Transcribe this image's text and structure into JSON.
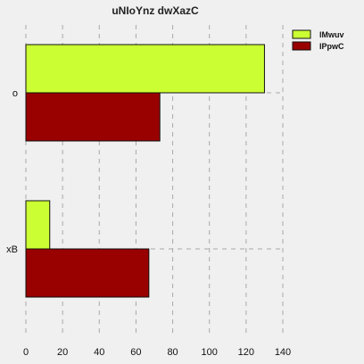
{
  "chart_data": {
    "type": "bar",
    "orientation": "horizontal",
    "title": "uNIoYnz dwXazC",
    "xlabel": "",
    "ylabel": "",
    "categories": [
      "o",
      "xB"
    ],
    "series": [
      {
        "name": "lMwuv",
        "values": [
          130,
          13
        ],
        "color": "#ccff33"
      },
      {
        "name": "IPpwC",
        "values": [
          73,
          67
        ],
        "color": "#990000"
      }
    ],
    "xlim": [
      0,
      140
    ],
    "xticks": [
      0,
      20,
      40,
      60,
      80,
      100,
      120,
      140
    ],
    "grid": true,
    "legend_position": "top-right",
    "background": "#f0f0f0"
  }
}
